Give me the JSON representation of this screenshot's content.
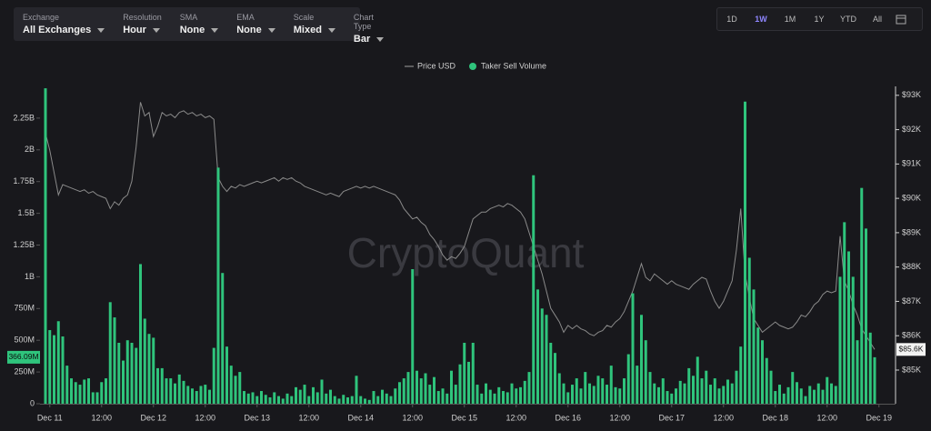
{
  "toolbar": {
    "filters": [
      {
        "label": "Exchange",
        "value": "All Exchanges"
      },
      {
        "label": "Resolution",
        "value": "Hour"
      },
      {
        "label": "SMA",
        "value": "None"
      },
      {
        "label": "EMA",
        "value": "None"
      },
      {
        "label": "Scale",
        "value": "Mixed"
      },
      {
        "label": "Chart Type",
        "value": "Bar"
      }
    ],
    "ranges": [
      {
        "label": "1D"
      },
      {
        "label": "1W",
        "active": true
      },
      {
        "label": "1M"
      },
      {
        "label": "1Y"
      },
      {
        "label": "YTD"
      },
      {
        "label": "All"
      }
    ]
  },
  "chart_data": {
    "type": "bar",
    "watermark": "CryptoQuant",
    "categories": [
      null,
      "Dec 11",
      null,
      null,
      null,
      null,
      null,
      null,
      null,
      null,
      null,
      null,
      null,
      "12:00",
      null,
      null,
      null,
      null,
      null,
      null,
      null,
      null,
      null,
      null,
      null,
      "Dec 12",
      null,
      null,
      null,
      null,
      null,
      null,
      null,
      null,
      null,
      null,
      null,
      "12:00",
      null,
      null,
      null,
      null,
      null,
      null,
      null,
      null,
      null,
      null,
      null,
      "Dec 13",
      null,
      null,
      null,
      null,
      null,
      null,
      null,
      null,
      null,
      null,
      null,
      "12:00",
      null,
      null,
      null,
      null,
      null,
      null,
      null,
      null,
      null,
      null,
      null,
      "Dec 14",
      null,
      null,
      null,
      null,
      null,
      null,
      null,
      null,
      null,
      null,
      null,
      "12:00",
      null,
      null,
      null,
      null,
      null,
      null,
      null,
      null,
      null,
      null,
      null,
      "Dec 15",
      null,
      null,
      null,
      null,
      null,
      null,
      null,
      null,
      null,
      null,
      null,
      "12:00",
      null,
      null,
      null,
      null,
      null,
      null,
      null,
      null,
      null,
      null,
      null,
      "Dec 16",
      null,
      null,
      null,
      null,
      null,
      null,
      null,
      null,
      null,
      null,
      null,
      "12:00",
      null,
      null,
      null,
      null,
      null,
      null,
      null,
      null,
      null,
      null,
      null,
      "Dec 17",
      null,
      null,
      null,
      null,
      null,
      null,
      null,
      null,
      null,
      null,
      null,
      "12:00",
      null,
      null,
      null,
      null,
      null,
      null,
      null,
      null,
      null,
      null,
      null,
      "Dec 18",
      null,
      null,
      null,
      null,
      null,
      null,
      null,
      null,
      null,
      null,
      null,
      "12:00",
      null,
      null,
      null,
      null,
      null,
      null,
      null,
      null,
      null,
      null,
      null,
      "Dec 19"
    ],
    "series": [
      {
        "name": "Price USD",
        "type": "line",
        "axis": "y2",
        "color": "#8a8a8a",
        "last_label": "$85.6K",
        "values": [
          91900,
          91400,
          90750,
          90100,
          90400,
          90350,
          90300,
          90250,
          90200,
          90250,
          90150,
          90200,
          90100,
          90050,
          90000,
          89700,
          89900,
          89800,
          90000,
          90100,
          90500,
          91500,
          92800,
          92400,
          92500,
          91800,
          92100,
          92500,
          92400,
          92450,
          92350,
          92500,
          92550,
          92450,
          92500,
          92400,
          92450,
          92350,
          92400,
          92300,
          90600,
          90350,
          90200,
          90350,
          90300,
          90400,
          90350,
          90400,
          90450,
          90500,
          90450,
          90500,
          90550,
          90600,
          90500,
          90600,
          90550,
          90600,
          90500,
          90450,
          90350,
          90300,
          90250,
          90200,
          90150,
          90100,
          90150,
          90100,
          90050,
          90200,
          90250,
          90300,
          90350,
          90300,
          90350,
          90300,
          90350,
          90300,
          90250,
          90200,
          90150,
          90100,
          89950,
          89700,
          89550,
          89400,
          89450,
          89300,
          89200,
          88950,
          88800,
          88600,
          88350,
          88200,
          88300,
          88250,
          88400,
          88600,
          89000,
          89400,
          89500,
          89600,
          89600,
          89700,
          89750,
          89800,
          89750,
          89850,
          89800,
          89700,
          89600,
          89400,
          89000,
          88600,
          88200,
          87800,
          87300,
          86800,
          86600,
          86400,
          86100,
          86300,
          86200,
          86300,
          86200,
          86150,
          86050,
          86000,
          86100,
          86150,
          86300,
          86250,
          86400,
          86500,
          86700,
          87000,
          87300,
          87700,
          88100,
          87700,
          87600,
          87800,
          87700,
          87600,
          87500,
          87600,
          87500,
          87450,
          87400,
          87350,
          87500,
          87600,
          87700,
          87650,
          87300,
          87000,
          86800,
          87000,
          87300,
          87600,
          88500,
          89700,
          87800,
          87100,
          86500,
          86300,
          86100,
          86200,
          86300,
          86400,
          86300,
          86250,
          86200,
          86250,
          86400,
          86600,
          86550,
          86700,
          86900,
          87000,
          87200,
          87300,
          87250,
          87300,
          88900,
          87600,
          87300,
          86900,
          86600,
          86200,
          86000,
          85800,
          85600,
          null
        ]
      },
      {
        "name": "Taker Sell Volume",
        "type": "bar",
        "color": "#2fc47c",
        "last_label": "366.09M",
        "values": [
          2485,
          580,
          540,
          650,
          530,
          300,
          200,
          170,
          150,
          190,
          200,
          90,
          90,
          170,
          200,
          800,
          680,
          480,
          340,
          500,
          480,
          440,
          1100,
          670,
          550,
          520,
          280,
          280,
          200,
          200,
          160,
          230,
          180,
          140,
          120,
          100,
          140,
          150,
          110,
          440,
          1860,
          1030,
          450,
          300,
          220,
          250,
          100,
          80,
          90,
          60,
          100,
          70,
          50,
          90,
          60,
          40,
          80,
          60,
          130,
          110,
          150,
          60,
          130,
          90,
          190,
          80,
          110,
          60,
          40,
          70,
          50,
          60,
          220,
          60,
          40,
          30,
          100,
          60,
          110,
          80,
          60,
          120,
          170,
          200,
          250,
          1060,
          260,
          200,
          240,
          150,
          210,
          100,
          120,
          80,
          260,
          150,
          310,
          480,
          330,
          480,
          150,
          80,
          160,
          110,
          80,
          130,
          100,
          90,
          160,
          120,
          130,
          180,
          250,
          1800,
          900,
          750,
          700,
          480,
          400,
          240,
          160,
          90,
          150,
          200,
          120,
          250,
          160,
          140,
          220,
          200,
          150,
          300,
          130,
          120,
          200,
          390,
          870,
          300,
          700,
          500,
          250,
          160,
          130,
          200,
          100,
          80,
          120,
          180,
          160,
          280,
          220,
          370,
          200,
          260,
          150,
          200,
          120,
          140,
          190,
          160,
          260,
          450,
          2380,
          1150,
          900,
          600,
          500,
          360,
          260,
          100,
          150,
          80,
          130,
          250,
          170,
          120,
          60,
          140,
          110,
          160,
          110,
          210,
          160,
          140,
          1000,
          1430,
          1200,
          1000,
          500,
          1700,
          1380,
          560,
          366.09,
          null
        ]
      }
    ],
    "ylim": [
      0,
      2500
    ],
    "yticks": [
      0,
      {
        "value": 250,
        "label": "250M"
      },
      {
        "value": 500,
        "label": "500M"
      },
      {
        "value": 750,
        "label": "750M"
      },
      {
        "value": 1000,
        "label": "1B"
      },
      {
        "value": 1250,
        "label": "1.25B"
      },
      {
        "value": 1500,
        "label": "1.5B"
      },
      {
        "value": 1750,
        "label": "1.75B"
      },
      {
        "value": 2000,
        "label": "2B"
      },
      {
        "value": 2250,
        "label": "2.25B"
      }
    ],
    "y2lim": [
      84020,
      93260
    ],
    "y2ticks": [
      {
        "value": 85000,
        "label": "$85K"
      },
      {
        "value": 86000,
        "label": "$86K"
      },
      {
        "value": 87000,
        "label": "$87K"
      },
      {
        "value": 88000,
        "label": "$88K"
      },
      {
        "value": 89000,
        "label": "$89K"
      },
      {
        "value": 90000,
        "label": "$90K"
      },
      {
        "value": 91000,
        "label": "$91K"
      },
      {
        "value": 92000,
        "label": "$92K"
      },
      {
        "value": 93000,
        "label": "$93K"
      }
    ],
    "grid": false,
    "legend": "top"
  }
}
